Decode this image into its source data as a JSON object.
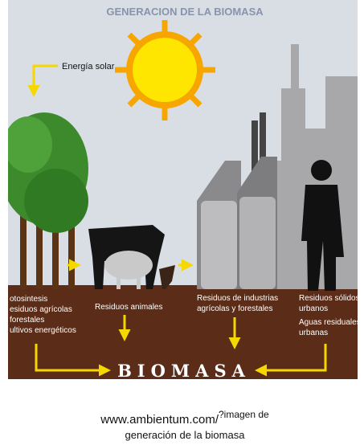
{
  "title": "GENERACION DE LA BIOMASA",
  "solar_label": "Energía solar",
  "columns": [
    {
      "lines": [
        "otosintesis",
        "esiduos agrícolas",
        "forestales",
        "ultivos energéticos"
      ]
    },
    {
      "lines": [
        "Residuos animales"
      ]
    },
    {
      "lines": [
        "Residuos de industrias",
        "agrícolas y forestales"
      ]
    },
    {
      "lines": [
        "Residuos sólidos",
        "urbanos",
        "Aguas residuales",
        "urbanas"
      ]
    }
  ],
  "result": "BIOMASA",
  "caption": {
    "link": "www.ambientum.com/",
    "superscript": "?imagen de",
    "line2": "generación de la biomasa"
  }
}
